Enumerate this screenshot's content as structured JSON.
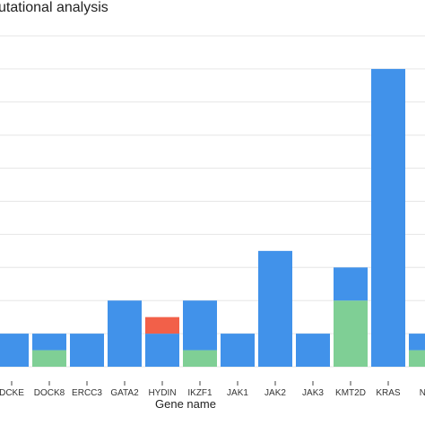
{
  "chart_data": {
    "type": "bar",
    "title": "utational analysis",
    "xlabel": "Gene name",
    "ylabel": "",
    "categories": [
      "DCKE",
      "DOCK8",
      "ERCC3",
      "GATA2",
      "HYDIN",
      "IKZF1",
      "JAK1",
      "JAK2",
      "JAK3",
      "KMT2D",
      "KRAS",
      "NR"
    ],
    "series": [
      {
        "values": [
          0,
          1,
          0,
          0,
          0,
          1,
          0,
          0,
          0,
          4,
          0,
          1
        ]
      },
      {
        "values": [
          2,
          1,
          2,
          4,
          2,
          3,
          2,
          7,
          2,
          2,
          18,
          1
        ]
      },
      {
        "values": [
          0,
          0,
          0,
          0,
          1,
          0,
          0,
          0,
          0,
          0,
          0,
          0
        ]
      }
    ],
    "ylim": [
      0,
      20
    ],
    "yticks": [
      0,
      2,
      4,
      6,
      8,
      10,
      12,
      14,
      16,
      18,
      20
    ],
    "grid": true,
    "legend": "none",
    "colors": [
      "#7fcf95",
      "#4192ea",
      "#f26049"
    ]
  }
}
